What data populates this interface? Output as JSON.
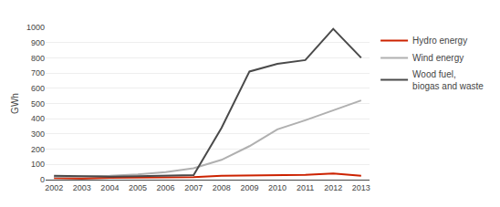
{
  "chart_data": {
    "type": "line",
    "x": [
      2002,
      2003,
      2004,
      2005,
      2006,
      2007,
      2008,
      2009,
      2010,
      2011,
      2012,
      2013
    ],
    "series": [
      {
        "name": "Hydro energy",
        "color": "#cc2200",
        "values": [
          10,
          8,
          12,
          14,
          14,
          16,
          25,
          28,
          28,
          32,
          40,
          25
        ]
      },
      {
        "name": "Wind energy",
        "color": "#b0b0b0",
        "values": [
          18,
          20,
          25,
          35,
          50,
          75,
          130,
          220,
          330,
          390,
          455,
          520
        ]
      },
      {
        "name": "Wood fuel,\nbiogas and waste",
        "color": "#4a4a4a",
        "values": [
          25,
          22,
          20,
          22,
          25,
          30,
          340,
          710,
          760,
          785,
          990,
          800
        ]
      }
    ],
    "xlim": [
      2001.7,
      2013.3
    ],
    "xticks": [
      2002,
      2003,
      2004,
      2005,
      2006,
      2007,
      2008,
      2009,
      2010,
      2011,
      2012,
      2013
    ],
    "ylim": [
      0,
      1000
    ],
    "yticks": [
      0,
      100,
      200,
      300,
      400,
      500,
      600,
      700,
      800,
      900,
      1000
    ],
    "ylabel": "GWh",
    "grid": true,
    "legend": "right"
  }
}
